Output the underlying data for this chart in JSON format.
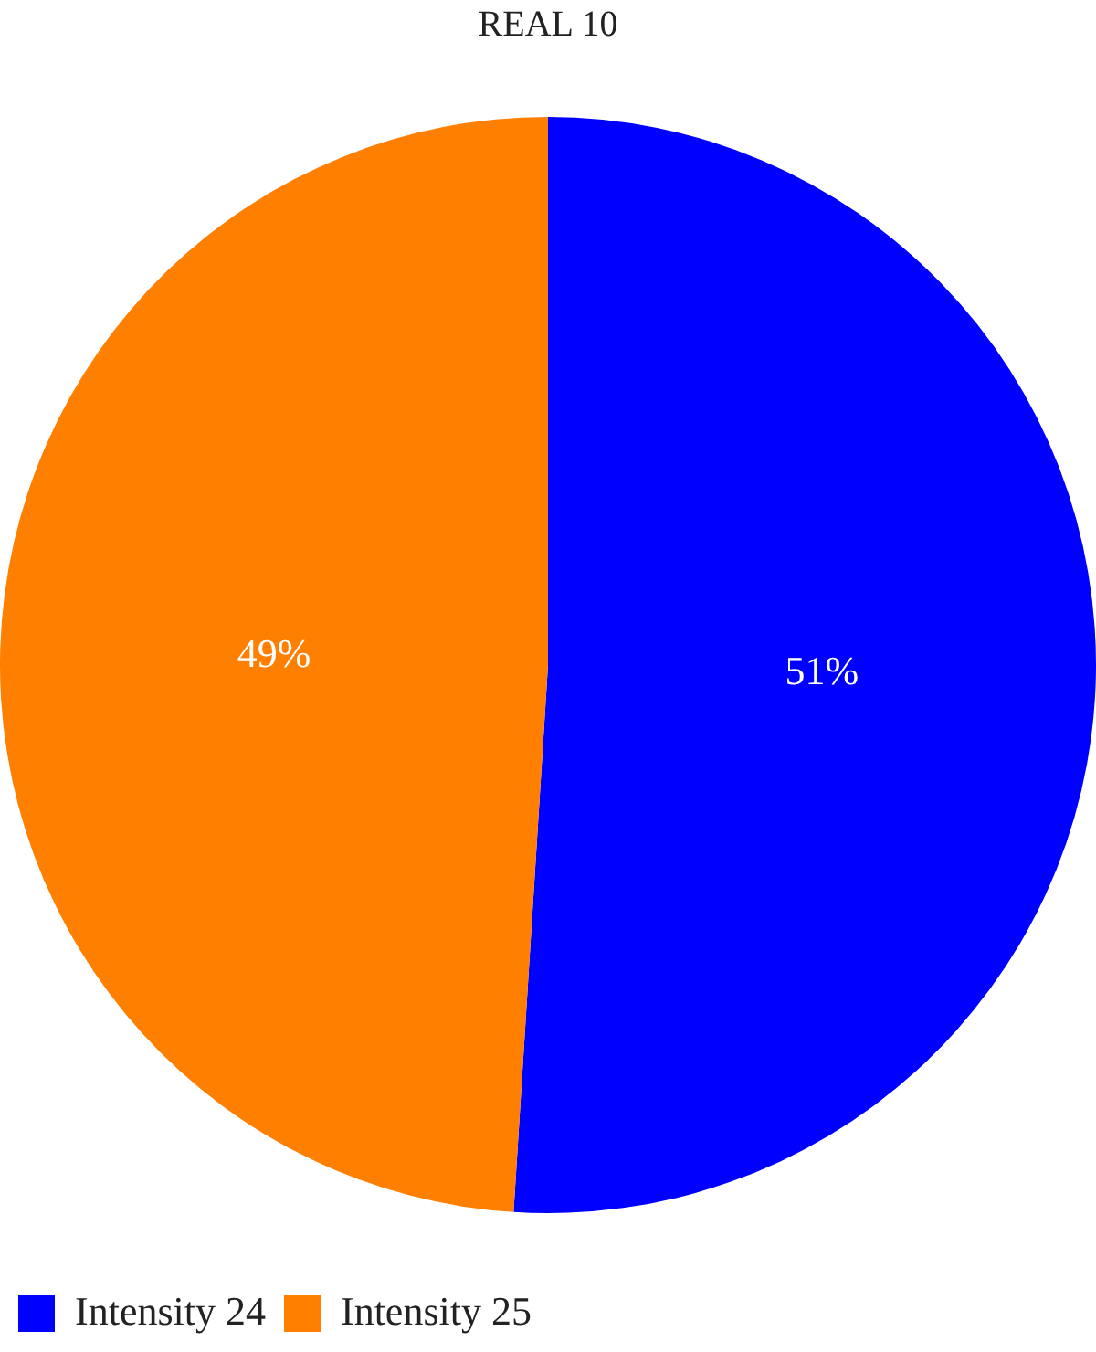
{
  "chart_data": {
    "type": "pie",
    "title": "REAL 10",
    "categories": [
      "Intensity 24",
      "Intensity 25"
    ],
    "values": [
      51,
      49
    ],
    "colors": [
      "#0000ff",
      "#ff7f00"
    ],
    "value_labels": [
      "51%",
      "49%"
    ],
    "legend": "bottom left"
  }
}
